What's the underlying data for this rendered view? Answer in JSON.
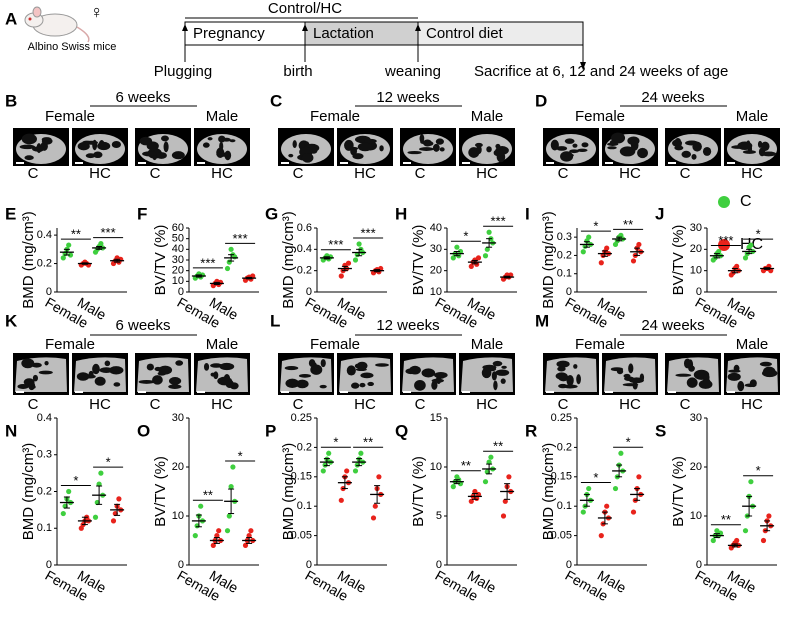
{
  "timeline": {
    "panel": "A",
    "mouse_label": "Albino Swiss mice",
    "sex_symbol": "♀",
    "control_label": "Control/HC",
    "phases": [
      "Pregnancy",
      "Lactation",
      "Control diet"
    ],
    "events": [
      "Plugging",
      "birth",
      "weaning",
      "Sacrifice at 6, 12 and 24 weeks of age"
    ]
  },
  "image_rows": [
    [
      {
        "letter": "B",
        "title": "6 weeks",
        "groups": [
          "Female",
          "Male"
        ],
        "labels": [
          "C",
          "HC",
          "C",
          "HC"
        ]
      },
      {
        "letter": "C",
        "title": "12 weeks",
        "groups": [
          "Female",
          "Male"
        ],
        "labels": [
          "C",
          "HC",
          "C",
          "HC"
        ]
      },
      {
        "letter": "D",
        "title": "24 weeks",
        "groups": [
          "Female",
          "Male"
        ],
        "labels": [
          "C",
          "HC",
          "C",
          "HC"
        ]
      }
    ],
    [
      {
        "letter": "K",
        "title": "6 weeks",
        "groups": [
          "Female",
          "Male"
        ],
        "labels": [
          "C",
          "HC",
          "C",
          "HC"
        ]
      },
      {
        "letter": "L",
        "title": "12 weeks",
        "groups": [
          "Female",
          "Male"
        ],
        "labels": [
          "C",
          "HC",
          "C",
          "HC"
        ]
      },
      {
        "letter": "M",
        "title": "24 weeks",
        "groups": [
          "Female",
          "Male"
        ],
        "labels": [
          "C",
          "HC",
          "C",
          "HC"
        ]
      }
    ]
  ],
  "legend": [
    {
      "name": "C",
      "color": "#3fcf3f"
    },
    {
      "name": "HC",
      "color": "#e8231c"
    }
  ],
  "chart_data": [
    {
      "type": "scatter",
      "panel": "E",
      "ylabel": "BMD (mg/cm³)",
      "categories": [
        "Female",
        "Male"
      ],
      "ylim": [
        0,
        0.45
      ],
      "yticks": [
        0,
        0.2,
        0.4
      ],
      "significance": [
        "**",
        "***"
      ],
      "series": [
        {
          "values": [
            [
              0.24,
              0.27,
              0.3,
              0.33,
              0.26
            ],
            [
              0.28,
              0.3,
              0.32,
              0.34,
              0.31
            ]
          ],
          "means": [
            0.28,
            0.31
          ],
          "sems": [
            0.02,
            0.01
          ]
        },
        {
          "values": [
            [
              0.19,
              0.2,
              0.21,
              0.2,
              0.19
            ],
            [
              0.2,
              0.22,
              0.24,
              0.21,
              0.23
            ]
          ],
          "means": [
            0.2,
            0.22
          ],
          "sems": [
            0.005,
            0.01
          ]
        }
      ]
    },
    {
      "type": "scatter",
      "panel": "F",
      "ylabel": "BV/TV (%)",
      "categories": [
        "Female",
        "Male"
      ],
      "ylim": [
        0,
        60
      ],
      "yticks": [
        0,
        10,
        20,
        30,
        40,
        50,
        60
      ],
      "significance": [
        "***",
        "***"
      ],
      "series": [
        {
          "values": [
            [
              13,
              15,
              17,
              14,
              16
            ],
            [
              22,
              28,
              40,
              35,
              33
            ]
          ],
          "means": [
            15,
            32
          ],
          "sems": [
            1,
            3
          ]
        },
        {
          "values": [
            [
              6,
              8,
              10,
              7,
              9
            ],
            [
              11,
              13,
              14,
              12,
              15
            ]
          ],
          "means": [
            8,
            13
          ],
          "sems": [
            1,
            0.7
          ]
        }
      ]
    },
    {
      "type": "scatter",
      "panel": "G",
      "ylabel": "BMD (mg/cm³)",
      "categories": [
        "Female",
        "Male"
      ],
      "ylim": [
        0,
        0.6
      ],
      "yticks": [
        0,
        0.2,
        0.4,
        0.6
      ],
      "significance": [
        "***",
        "***"
      ],
      "series": [
        {
          "values": [
            [
              0.3,
              0.32,
              0.34,
              0.31,
              0.33
            ],
            [
              0.3,
              0.35,
              0.45,
              0.4,
              0.37
            ]
          ],
          "means": [
            0.32,
            0.37
          ],
          "sems": [
            0.01,
            0.03
          ]
        },
        {
          "values": [
            [
              0.15,
              0.2,
              0.25,
              0.22,
              0.27
            ],
            [
              0.18,
              0.2,
              0.21,
              0.19,
              0.22
            ]
          ],
          "means": [
            0.22,
            0.2
          ],
          "sems": [
            0.02,
            0.01
          ]
        }
      ]
    },
    {
      "type": "scatter",
      "panel": "H",
      "ylabel": "BV/TV (%)",
      "categories": [
        "Female",
        "Male"
      ],
      "ylim": [
        10,
        40
      ],
      "yticks": [
        10,
        20,
        30,
        40
      ],
      "significance": [
        "*",
        "***"
      ],
      "series": [
        {
          "values": [
            [
              26,
              28,
              31,
              27,
              29
            ],
            [
              27,
              30,
              38,
              35,
              33
            ]
          ],
          "means": [
            28,
            33
          ],
          "sems": [
            1,
            2
          ]
        },
        {
          "values": [
            [
              22,
              24,
              25,
              23,
              26
            ],
            [
              16,
              17,
              18,
              17,
              18
            ]
          ],
          "means": [
            24,
            17
          ],
          "sems": [
            0.8,
            0.4
          ]
        }
      ]
    },
    {
      "type": "scatter",
      "panel": "I",
      "ylabel": "BMD (mg/cm³)",
      "categories": [
        "Female",
        "Male"
      ],
      "ylim": [
        0,
        0.35
      ],
      "yticks": [
        0,
        0.1,
        0.2,
        0.3
      ],
      "significance": [
        "*",
        "**"
      ],
      "series": [
        {
          "values": [
            [
              0.22,
              0.25,
              0.28,
              0.3,
              0.26
            ],
            [
              0.26,
              0.28,
              0.3,
              0.31,
              0.29
            ]
          ],
          "means": [
            0.26,
            0.29
          ],
          "sems": [
            0.015,
            0.01
          ]
        },
        {
          "values": [
            [
              0.16,
              0.2,
              0.22,
              0.24,
              0.21
            ],
            [
              0.17,
              0.2,
              0.24,
              0.26,
              0.22
            ]
          ],
          "means": [
            0.21,
            0.22
          ],
          "sems": [
            0.015,
            0.02
          ]
        }
      ]
    },
    {
      "type": "scatter",
      "panel": "J",
      "ylabel": "BV/TV (%)",
      "categories": [
        "Female",
        "Male"
      ],
      "ylim": [
        0,
        30
      ],
      "yticks": [
        0,
        10,
        20,
        30
      ],
      "significance": [
        "***",
        "*"
      ],
      "series": [
        {
          "values": [
            [
              15,
              16,
              18,
              19,
              17
            ],
            [
              16,
              18,
              21,
              22,
              19
            ]
          ],
          "means": [
            17,
            19
          ],
          "sems": [
            1,
            1
          ]
        },
        {
          "values": [
            [
              8,
              9,
              11,
              12,
              10
            ],
            [
              10,
              11,
              11,
              12,
              10
            ]
          ],
          "means": [
            10,
            11
          ],
          "sems": [
            1,
            0.4
          ]
        }
      ]
    },
    {
      "type": "scatter",
      "panel": "N",
      "ylabel": "BMD (mg/cm³)",
      "categories": [
        "Female",
        "Male"
      ],
      "ylim": [
        0,
        0.4
      ],
      "yticks": [
        0,
        0.1,
        0.2,
        0.3,
        0.4
      ],
      "significance": [
        "*",
        "*"
      ],
      "series": [
        {
          "values": [
            [
              0.14,
              0.16,
              0.18,
              0.2,
              0.17
            ],
            [
              0.13,
              0.17,
              0.22,
              0.25,
              0.19
            ]
          ],
          "means": [
            0.17,
            0.19
          ],
          "sems": [
            0.015,
            0.025
          ]
        },
        {
          "values": [
            [
              0.1,
              0.11,
              0.12,
              0.13,
              0.12
            ],
            [
              0.12,
              0.14,
              0.16,
              0.18,
              0.15
            ]
          ],
          "means": [
            0.12,
            0.15
          ],
          "sems": [
            0.01,
            0.015
          ]
        }
      ]
    },
    {
      "type": "scatter",
      "panel": "O",
      "ylabel": "BV/TV (%)",
      "categories": [
        "Female",
        "Male"
      ],
      "ylim": [
        0,
        30
      ],
      "yticks": [
        0,
        10,
        20,
        30
      ],
      "significance": [
        "**",
        "*"
      ],
      "series": [
        {
          "values": [
            [
              6,
              8,
              10,
              12,
              9
            ],
            [
              7,
              10,
              16,
              20,
              13
            ]
          ],
          "means": [
            9,
            13
          ],
          "sems": [
            1.2,
            2.5
          ]
        },
        {
          "values": [
            [
              4,
              5,
              6,
              7,
              5
            ],
            [
              4,
              5,
              6,
              7,
              5
            ]
          ],
          "means": [
            5,
            5
          ],
          "sems": [
            0.6,
            0.6
          ]
        }
      ]
    },
    {
      "type": "scatter",
      "panel": "P",
      "ylabel": "BMD (mg/cm³)",
      "categories": [
        "Female",
        "Male"
      ],
      "ylim": [
        0,
        0.25
      ],
      "yticks": [
        0,
        0.05,
        0.1,
        0.15,
        0.2,
        0.25
      ],
      "significance": [
        "*",
        "**"
      ],
      "series": [
        {
          "values": [
            [
              0.16,
              0.17,
              0.18,
              0.19,
              0.175
            ],
            [
              0.16,
              0.17,
              0.18,
              0.19,
              0.175
            ]
          ],
          "means": [
            0.175,
            0.175
          ],
          "sems": [
            0.006,
            0.006
          ]
        },
        {
          "values": [
            [
              0.11,
              0.13,
              0.15,
              0.16,
              0.14
            ],
            [
              0.08,
              0.1,
              0.13,
              0.15,
              0.12
            ]
          ],
          "means": [
            0.14,
            0.12
          ],
          "sems": [
            0.01,
            0.015
          ]
        }
      ]
    },
    {
      "type": "scatter",
      "panel": "Q",
      "ylabel": "BV/TV (%)",
      "categories": [
        "Female",
        "Male"
      ],
      "ylim": [
        0,
        15
      ],
      "yticks": [
        0,
        5,
        10,
        15
      ],
      "significance": [
        "**",
        "**"
      ],
      "series": [
        {
          "values": [
            [
              8,
              8.5,
              9,
              8.7,
              8.3
            ],
            [
              8.5,
              9.5,
              10.5,
              11,
              9.8
            ]
          ],
          "means": [
            8.5,
            9.8
          ],
          "sems": [
            0.2,
            0.5
          ]
        },
        {
          "values": [
            [
              6.5,
              7,
              7.5,
              6.8,
              7.2
            ],
            [
              5,
              6.5,
              8,
              9,
              7.5
            ]
          ],
          "means": [
            7,
            7.5
          ],
          "sems": [
            0.3,
            0.8
          ]
        }
      ]
    },
    {
      "type": "scatter",
      "panel": "R",
      "ylabel": "BMD (mg/cm³)",
      "categories": [
        "Female",
        "Male"
      ],
      "ylim": [
        0,
        0.25
      ],
      "yticks": [
        0,
        0.05,
        0.1,
        0.15,
        0.2,
        0.25
      ],
      "significance": [
        "*",
        "*"
      ],
      "series": [
        {
          "values": [
            [
              0.09,
              0.1,
              0.12,
              0.13,
              0.11
            ],
            [
              0.13,
              0.15,
              0.17,
              0.19,
              0.16
            ]
          ],
          "means": [
            0.11,
            0.16
          ],
          "sems": [
            0.01,
            0.01
          ]
        },
        {
          "values": [
            [
              0.05,
              0.07,
              0.09,
              0.1,
              0.08
            ],
            [
              0.09,
              0.11,
              0.13,
              0.15,
              0.12
            ]
          ],
          "means": [
            0.08,
            0.12
          ],
          "sems": [
            0.01,
            0.01
          ]
        }
      ]
    },
    {
      "type": "scatter",
      "panel": "S",
      "ylabel": "BV/TV (%)",
      "categories": [
        "Female",
        "Male"
      ],
      "ylim": [
        0,
        30
      ],
      "yticks": [
        0,
        10,
        20,
        30
      ],
      "significance": [
        "**",
        "*"
      ],
      "series": [
        {
          "values": [
            [
              5,
              6,
              7,
              6,
              6.5
            ],
            [
              7,
              10,
              14,
              17,
              12
            ]
          ],
          "means": [
            6,
            12
          ],
          "sems": [
            0.4,
            2
          ]
        },
        {
          "values": [
            [
              3.5,
              4,
              4.5,
              5,
              4
            ],
            [
              5,
              7,
              9,
              10,
              8
            ]
          ],
          "means": [
            4,
            8
          ],
          "sems": [
            0.3,
            1
          ]
        }
      ]
    }
  ]
}
